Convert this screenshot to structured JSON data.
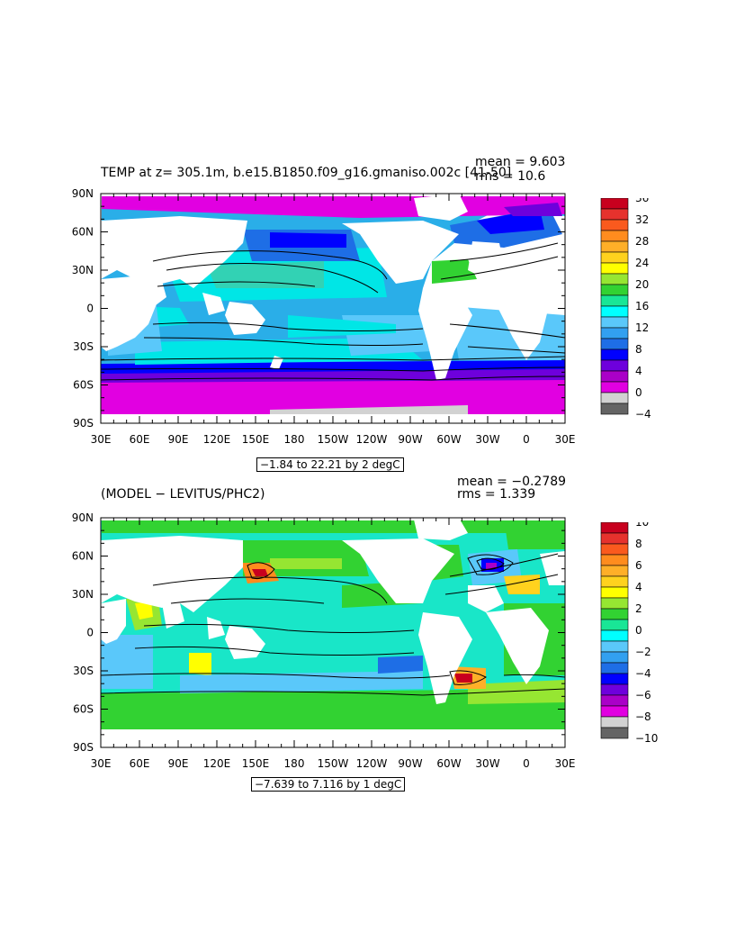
{
  "panels": [
    {
      "title": "TEMP at z= 305.1m, b.e15.B1850.f09_g16.gmaniso.002c [41-50]",
      "mean": "mean = 9.603",
      "rms": "rms = 10.6",
      "range": "−1.84 to 22.21 by 2 degC",
      "colorbar_labels": [
        "36",
        "32",
        "28",
        "24",
        "20",
        "16",
        "12",
        "8",
        "4",
        "0",
        "−4"
      ],
      "colorbar_colors": [
        "#c8001e",
        "#e6322d",
        "#fa5a1e",
        "#ff8c1e",
        "#ffaf28",
        "#ffd21e",
        "#ffff00",
        "#96e632",
        "#32d232",
        "#19e696",
        "#00ffff",
        "#5ac8fa",
        "#32a0f0",
        "#1e6ee6",
        "#0000ff",
        "#6e00dc",
        "#aa00c8",
        "#e100e1",
        "#d2d2d2",
        "#646464"
      ]
    },
    {
      "title": "(MODEL − LEVITUS/PHC2)",
      "mean": "mean = −0.2789",
      "rms": "rms = 1.339",
      "range": "−7.639 to 7.116 by 1 degC",
      "colorbar_labels": [
        "10",
        "8",
        "6",
        "4",
        "2",
        "0",
        "−2",
        "−4",
        "−6",
        "−8",
        "−10"
      ],
      "colorbar_colors": [
        "#c8001e",
        "#e6322d",
        "#fa5a1e",
        "#ff8c1e",
        "#ffaf28",
        "#ffd21e",
        "#ffff00",
        "#96e632",
        "#32d232",
        "#19e696",
        "#00ffff",
        "#5ac8fa",
        "#32a0f0",
        "#1e6ee6",
        "#0000ff",
        "#6e00dc",
        "#aa00c8",
        "#e100e1",
        "#d2d2d2",
        "#646464"
      ]
    }
  ],
  "axes": {
    "lat_labels": [
      "90N",
      "60N",
      "30N",
      "0",
      "30S",
      "60S",
      "90S"
    ],
    "lon_labels": [
      "30E",
      "60E",
      "90E",
      "120E",
      "150E",
      "180",
      "150W",
      "120W",
      "90W",
      "60W",
      "30W",
      "0",
      "30E"
    ]
  }
}
